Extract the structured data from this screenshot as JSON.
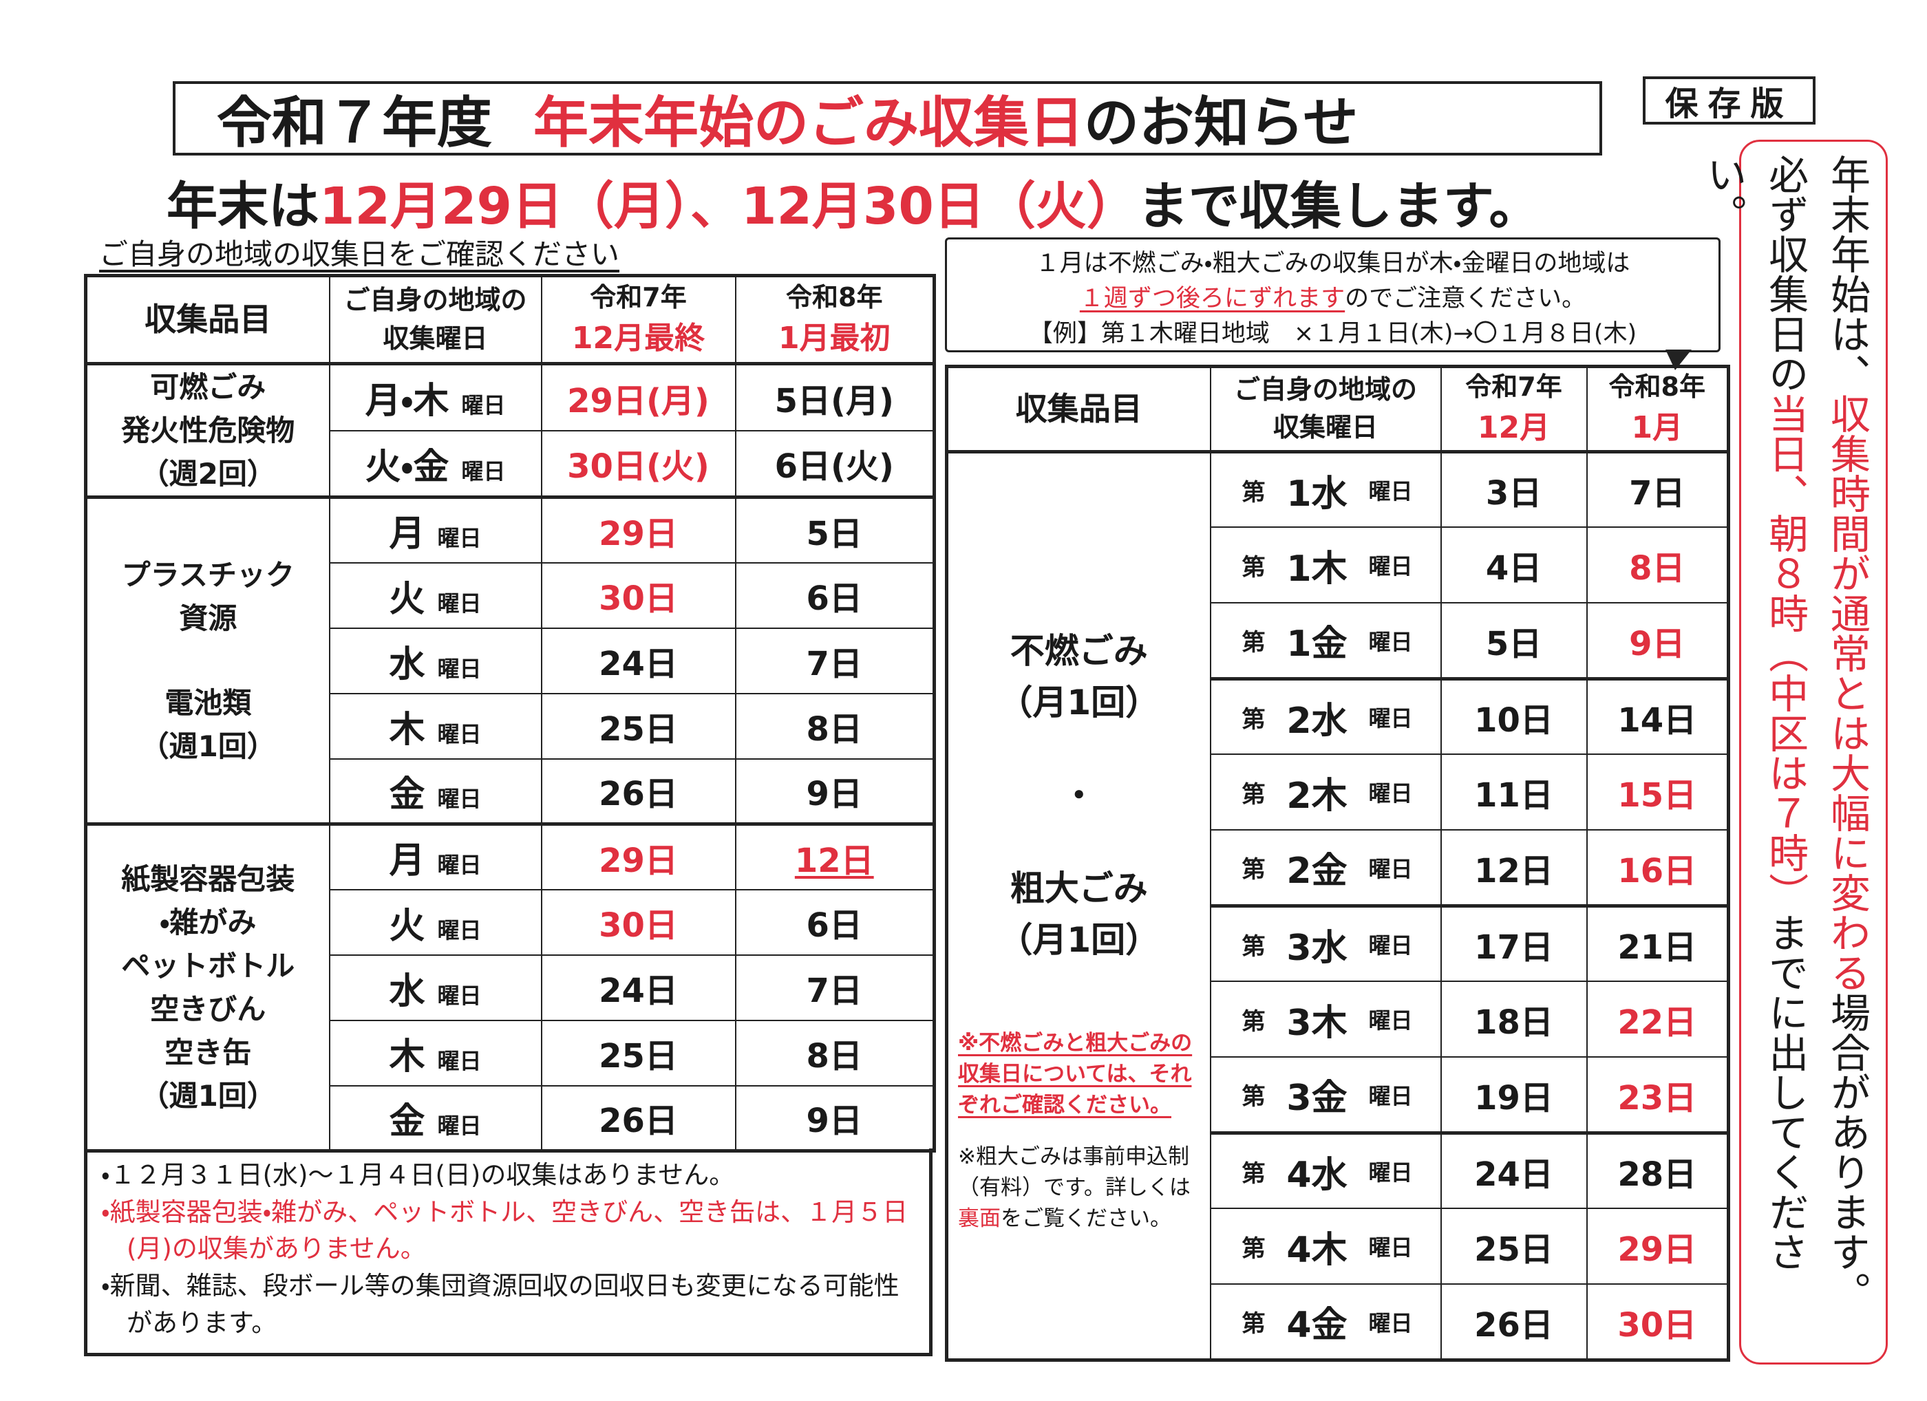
{
  "header": {
    "title": {
      "prefix": "令和７年度",
      "highlight": "年末年始のごみ収集日",
      "suffix": "のお知らせ"
    },
    "badge": "保存版",
    "subtitle": {
      "prefix": "年末は",
      "highlight": "12月29日（月）、12月30日（火）",
      "suffix": "まで収集します。"
    },
    "instruction": "ご自身の地域の収集日をご確認ください"
  },
  "left_table": {
    "headers": {
      "item": "収集品目",
      "day": [
        "ご自身の地域の",
        "収集曜日"
      ],
      "dec": [
        "令和7年",
        "12月最終"
      ],
      "jan": [
        "令和8年",
        "1月最初"
      ]
    },
    "groups": [
      {
        "label": [
          [
            "可燃ごみ",
            "発火性危険物",
            "（週2回）"
          ]
        ],
        "rows": [
          {
            "cells": [
              "月・木",
              "曜日",
              "29日(月)",
              "5日(月)"
            ],
            "red": [
              2
            ]
          },
          {
            "cells": [
              "火・金",
              "曜日",
              "30日(火)",
              "6日(火)"
            ],
            "red": [
              2
            ]
          }
        ]
      },
      {
        "label": [
          [
            "プラスチック",
            "資源"
          ],
          [
            "電池類",
            "（週1回）"
          ]
        ],
        "rows": [
          {
            "cells": [
              "月",
              "曜日",
              "29日",
              "5日"
            ],
            "red": [
              2
            ]
          },
          {
            "cells": [
              "火",
              "曜日",
              "30日",
              "6日"
            ],
            "red": [
              2
            ]
          },
          {
            "cells": [
              "水",
              "曜日",
              "24日",
              "7日"
            ],
            "red": []
          },
          {
            "cells": [
              "木",
              "曜日",
              "25日",
              "8日"
            ],
            "red": []
          },
          {
            "cells": [
              "金",
              "曜日",
              "26日",
              "9日"
            ],
            "red": []
          }
        ]
      },
      {
        "label": [
          [
            "紙製容器包装",
            "・雑がみ",
            "ペットボトル",
            "空きびん",
            "空き缶",
            "（週1回）"
          ]
        ],
        "rows": [
          {
            "cells": [
              "月",
              "曜日",
              "29日",
              "12日"
            ],
            "red": [
              2,
              3
            ],
            "underline": [
              3
            ]
          },
          {
            "cells": [
              "火",
              "曜日",
              "30日",
              "6日"
            ],
            "red": [
              2
            ]
          },
          {
            "cells": [
              "水",
              "曜日",
              "24日",
              "7日"
            ],
            "red": []
          },
          {
            "cells": [
              "木",
              "曜日",
              "25日",
              "8日"
            ],
            "red": []
          },
          {
            "cells": [
              "金",
              "曜日",
              "26日",
              "9日"
            ],
            "red": []
          }
        ]
      }
    ]
  },
  "notes": [
    {
      "text": "・１２月３１日(水)～１月４日(日)の収集はありません。"
    },
    {
      "text": "・紙製容器包装・雑がみ、ペットボトル、空きびん、空き缶は、１月５日(月)の収集がありません。",
      "red": true
    },
    {
      "text": "・新聞、雑誌、段ボール等の集団資源回収の回収日も変更になる可能性があります。"
    }
  ],
  "callout": [
    [
      {
        "text": "１月は不燃ごみ・粗大ごみの収集日が木・金曜日の地域は"
      }
    ],
    [
      {
        "text": "１週ずつ後ろにずれます",
        "red": true,
        "underline": true
      },
      {
        "text": "のでご注意ください。"
      }
    ],
    [
      {
        "text": "【例】第１木曜日地域　×１月１日(木)→〇１月８日(木)"
      }
    ]
  ],
  "right_table": {
    "headers": {
      "item": "収集品目",
      "day": [
        "ご自身の地域の",
        "収集曜日"
      ],
      "dec": [
        "令和7年",
        "12月"
      ],
      "jan": [
        "令和8年",
        "1月"
      ]
    },
    "item": {
      "label": [
        [
          "不燃ごみ",
          "（月1回）"
        ],
        [
          "・"
        ],
        [
          "粗大ごみ",
          "（月1回）"
        ]
      ],
      "note1": "※不燃ごみと粗大ごみの収集日については、それぞれご確認ください。",
      "note2": [
        {
          "text": "※粗大ごみは事前申込制（有料）です。詳しくは"
        },
        {
          "text": "裏面",
          "red": true
        },
        {
          "text": "をご覧ください。"
        }
      ]
    },
    "rows": [
      {
        "cells": [
          "第",
          "1水",
          "曜日",
          "3日",
          "7日"
        ],
        "red": []
      },
      {
        "cells": [
          "第",
          "1木",
          "曜日",
          "4日",
          "8日"
        ],
        "red": [
          4
        ]
      },
      {
        "cells": [
          "第",
          "1金",
          "曜日",
          "5日",
          "9日"
        ],
        "red": [
          4
        ]
      },
      {
        "cells": [
          "第",
          "2水",
          "曜日",
          "10日",
          "14日"
        ],
        "red": []
      },
      {
        "cells": [
          "第",
          "2木",
          "曜日",
          "11日",
          "15日"
        ],
        "red": [
          4
        ]
      },
      {
        "cells": [
          "第",
          "2金",
          "曜日",
          "12日",
          "16日"
        ],
        "red": [
          4
        ]
      },
      {
        "cells": [
          "第",
          "3水",
          "曜日",
          "17日",
          "21日"
        ],
        "red": []
      },
      {
        "cells": [
          "第",
          "3木",
          "曜日",
          "18日",
          "22日"
        ],
        "red": [
          4
        ]
      },
      {
        "cells": [
          "第",
          "3金",
          "曜日",
          "19日",
          "23日"
        ],
        "red": [
          4
        ]
      },
      {
        "cells": [
          "第",
          "4水",
          "曜日",
          "24日",
          "28日"
        ],
        "red": []
      },
      {
        "cells": [
          "第",
          "4木",
          "曜日",
          "25日",
          "29日"
        ],
        "red": [
          4
        ]
      },
      {
        "cells": [
          "第",
          "4金",
          "曜日",
          "26日",
          "30日"
        ],
        "red": [
          4
        ]
      }
    ]
  },
  "side_note": {
    "col1": [
      {
        "text": "年末年始は、"
      },
      {
        "text": "収集時間が通常とは大幅に変わる",
        "red": true
      },
      {
        "text": "場合があります。"
      }
    ],
    "col2": [
      {
        "text": "必ず収集日の"
      },
      {
        "text": "当日、朝８時（中区は７時）",
        "red": true
      },
      {
        "text": "までに出してください。"
      }
    ]
  }
}
